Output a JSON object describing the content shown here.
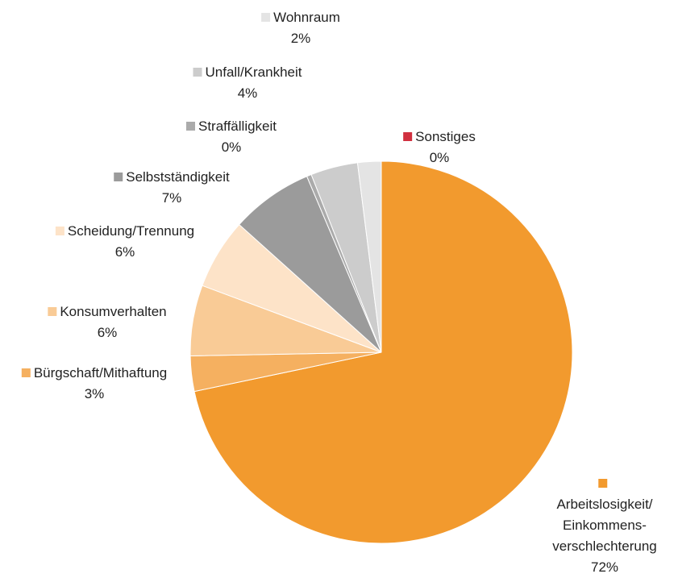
{
  "chart_data": {
    "type": "pie",
    "categories": [
      "Arbeitslosigkeit/\nEinkommens-\nverschlechterung",
      "Bürgschaft/Mithaftung",
      "Konsumverhalten",
      "Scheidung/Trennung",
      "Selbstständigkeit",
      "Straffälligkeit",
      "Unfall/Krankheit",
      "Wohnraum",
      "Sonstiges"
    ],
    "values": [
      72,
      3,
      6,
      6,
      7,
      0.4,
      4,
      2,
      0
    ],
    "value_labels": [
      "72%",
      "3%",
      "6%",
      "6%",
      "7%",
      "0%",
      "4%",
      "2%",
      "0%"
    ],
    "colors": [
      "#f29a2e",
      "#f5b060",
      "#f9cb96",
      "#fde3c8",
      "#9b9b9b",
      "#ababab",
      "#cccccc",
      "#e4e4e4",
      "#d0303f"
    ]
  }
}
